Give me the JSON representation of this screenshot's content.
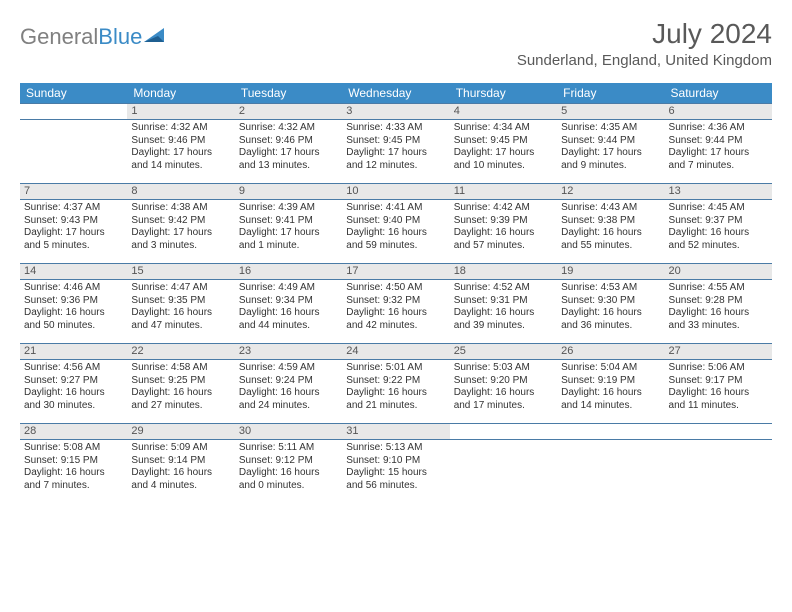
{
  "brand": {
    "text1": "General",
    "text2": "Blue"
  },
  "title": "July 2024",
  "location": "Sunderland, England, United Kingdom",
  "colors": {
    "header_bg": "#3b8bc6",
    "daynum_bg": "#e8e8e8",
    "border": "#4a7ba6",
    "text": "#333333",
    "title": "#595959"
  },
  "days": [
    "Sunday",
    "Monday",
    "Tuesday",
    "Wednesday",
    "Thursday",
    "Friday",
    "Saturday"
  ],
  "weeks": [
    [
      null,
      {
        "n": "1",
        "sr": "4:32 AM",
        "ss": "9:46 PM",
        "dl": "17 hours and 14 minutes."
      },
      {
        "n": "2",
        "sr": "4:32 AM",
        "ss": "9:46 PM",
        "dl": "17 hours and 13 minutes."
      },
      {
        "n": "3",
        "sr": "4:33 AM",
        "ss": "9:45 PM",
        "dl": "17 hours and 12 minutes."
      },
      {
        "n": "4",
        "sr": "4:34 AM",
        "ss": "9:45 PM",
        "dl": "17 hours and 10 minutes."
      },
      {
        "n": "5",
        "sr": "4:35 AM",
        "ss": "9:44 PM",
        "dl": "17 hours and 9 minutes."
      },
      {
        "n": "6",
        "sr": "4:36 AM",
        "ss": "9:44 PM",
        "dl": "17 hours and 7 minutes."
      }
    ],
    [
      {
        "n": "7",
        "sr": "4:37 AM",
        "ss": "9:43 PM",
        "dl": "17 hours and 5 minutes."
      },
      {
        "n": "8",
        "sr": "4:38 AM",
        "ss": "9:42 PM",
        "dl": "17 hours and 3 minutes."
      },
      {
        "n": "9",
        "sr": "4:39 AM",
        "ss": "9:41 PM",
        "dl": "17 hours and 1 minute."
      },
      {
        "n": "10",
        "sr": "4:41 AM",
        "ss": "9:40 PM",
        "dl": "16 hours and 59 minutes."
      },
      {
        "n": "11",
        "sr": "4:42 AM",
        "ss": "9:39 PM",
        "dl": "16 hours and 57 minutes."
      },
      {
        "n": "12",
        "sr": "4:43 AM",
        "ss": "9:38 PM",
        "dl": "16 hours and 55 minutes."
      },
      {
        "n": "13",
        "sr": "4:45 AM",
        "ss": "9:37 PM",
        "dl": "16 hours and 52 minutes."
      }
    ],
    [
      {
        "n": "14",
        "sr": "4:46 AM",
        "ss": "9:36 PM",
        "dl": "16 hours and 50 minutes."
      },
      {
        "n": "15",
        "sr": "4:47 AM",
        "ss": "9:35 PM",
        "dl": "16 hours and 47 minutes."
      },
      {
        "n": "16",
        "sr": "4:49 AM",
        "ss": "9:34 PM",
        "dl": "16 hours and 44 minutes."
      },
      {
        "n": "17",
        "sr": "4:50 AM",
        "ss": "9:32 PM",
        "dl": "16 hours and 42 minutes."
      },
      {
        "n": "18",
        "sr": "4:52 AM",
        "ss": "9:31 PM",
        "dl": "16 hours and 39 minutes."
      },
      {
        "n": "19",
        "sr": "4:53 AM",
        "ss": "9:30 PM",
        "dl": "16 hours and 36 minutes."
      },
      {
        "n": "20",
        "sr": "4:55 AM",
        "ss": "9:28 PM",
        "dl": "16 hours and 33 minutes."
      }
    ],
    [
      {
        "n": "21",
        "sr": "4:56 AM",
        "ss": "9:27 PM",
        "dl": "16 hours and 30 minutes."
      },
      {
        "n": "22",
        "sr": "4:58 AM",
        "ss": "9:25 PM",
        "dl": "16 hours and 27 minutes."
      },
      {
        "n": "23",
        "sr": "4:59 AM",
        "ss": "9:24 PM",
        "dl": "16 hours and 24 minutes."
      },
      {
        "n": "24",
        "sr": "5:01 AM",
        "ss": "9:22 PM",
        "dl": "16 hours and 21 minutes."
      },
      {
        "n": "25",
        "sr": "5:03 AM",
        "ss": "9:20 PM",
        "dl": "16 hours and 17 minutes."
      },
      {
        "n": "26",
        "sr": "5:04 AM",
        "ss": "9:19 PM",
        "dl": "16 hours and 14 minutes."
      },
      {
        "n": "27",
        "sr": "5:06 AM",
        "ss": "9:17 PM",
        "dl": "16 hours and 11 minutes."
      }
    ],
    [
      {
        "n": "28",
        "sr": "5:08 AM",
        "ss": "9:15 PM",
        "dl": "16 hours and 7 minutes."
      },
      {
        "n": "29",
        "sr": "5:09 AM",
        "ss": "9:14 PM",
        "dl": "16 hours and 4 minutes."
      },
      {
        "n": "30",
        "sr": "5:11 AM",
        "ss": "9:12 PM",
        "dl": "16 hours and 0 minutes."
      },
      {
        "n": "31",
        "sr": "5:13 AM",
        "ss": "9:10 PM",
        "dl": "15 hours and 56 minutes."
      },
      null,
      null,
      null
    ]
  ],
  "labels": {
    "sunrise": "Sunrise:",
    "sunset": "Sunset:",
    "daylight": "Daylight:"
  }
}
